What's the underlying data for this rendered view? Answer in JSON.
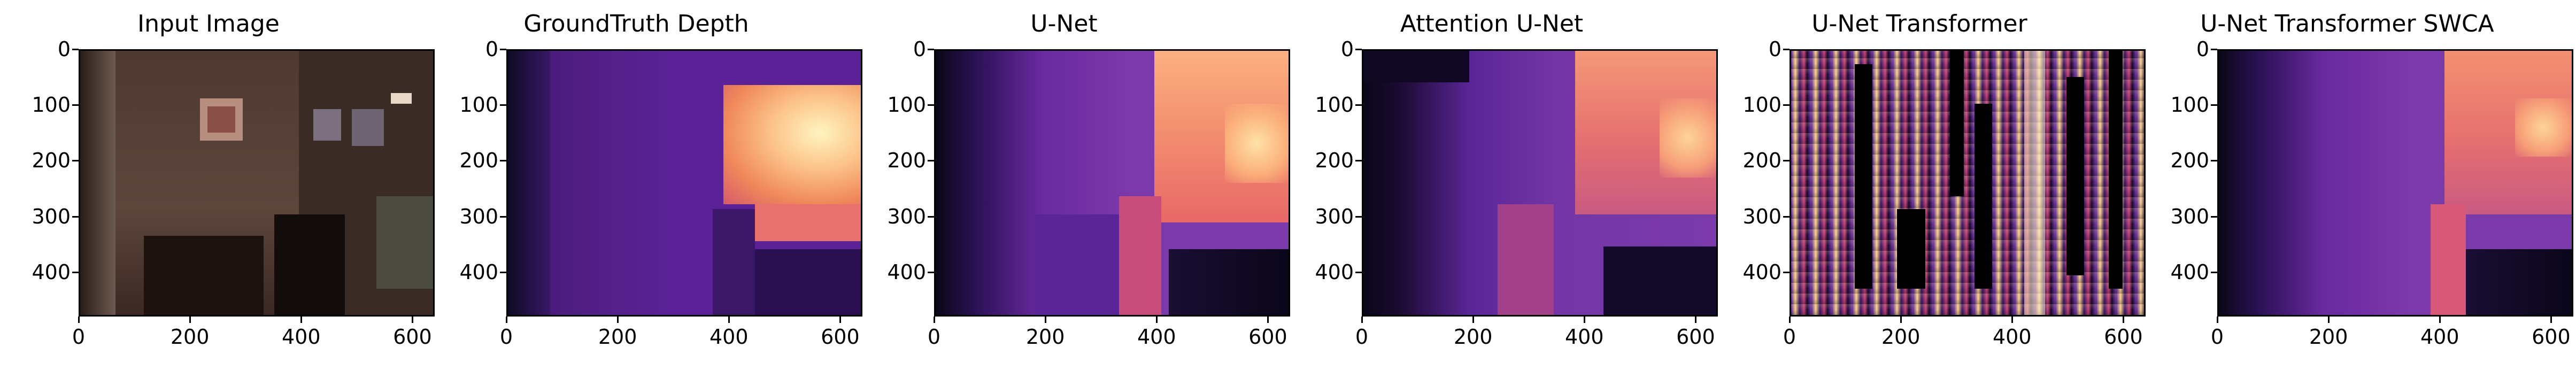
{
  "panels": [
    {
      "title": "Input Image"
    },
    {
      "title": "GroundTruth Depth"
    },
    {
      "title": "U-Net"
    },
    {
      "title": "Attention U-Net"
    },
    {
      "title": "U-Net Transformer"
    },
    {
      "title": "U-Net Transformer SWCA"
    }
  ],
  "axes": {
    "x_ticks": [
      "0",
      "200",
      "400",
      "600"
    ],
    "y_ticks": [
      "0",
      "100",
      "200",
      "300",
      "400"
    ]
  },
  "colormap": "magma"
}
